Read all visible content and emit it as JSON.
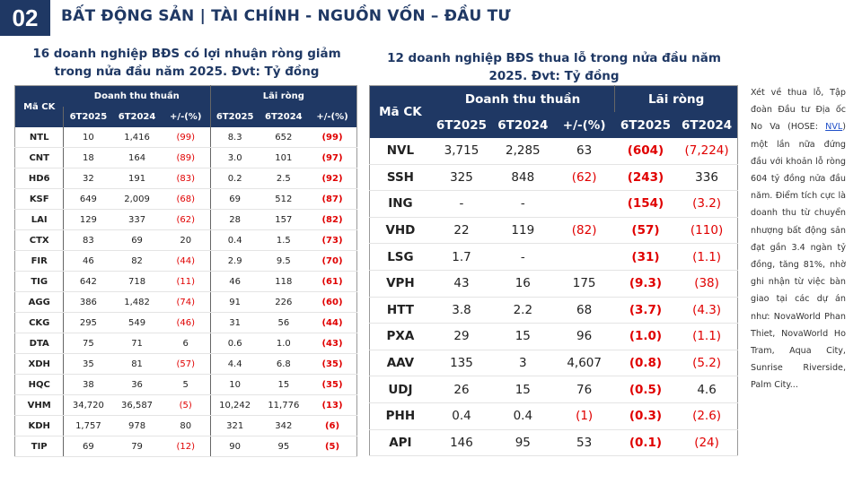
{
  "header": {
    "number": "02",
    "title": "BẤT ĐỘNG SẢN | TÀI CHÍNH - NGUỒN VỐN – ĐẦU TƯ"
  },
  "table1": {
    "title": "16 doanh nghiệp BĐS có lợi nhuận ròng giảm trong nửa đầu năm 2025. Đvt: Tỷ đồng",
    "key_header": "Mã CK",
    "group_headers": [
      "Doanh thu thuần",
      "Lãi ròng"
    ],
    "sub_headers": [
      "6T2025",
      "6T2024",
      "+/-(%)",
      "6T2025",
      "6T2024",
      "+/-(%)"
    ],
    "rows": [
      [
        "NTL",
        "10",
        "1,416",
        "(99)",
        "8.3",
        "652",
        "(99)"
      ],
      [
        "CNT",
        "18",
        "164",
        "(89)",
        "3.0",
        "101",
        "(97)"
      ],
      [
        "HD6",
        "32",
        "191",
        "(83)",
        "0.2",
        "2.5",
        "(92)"
      ],
      [
        "KSF",
        "649",
        "2,009",
        "(68)",
        "69",
        "512",
        "(87)"
      ],
      [
        "LAI",
        "129",
        "337",
        "(62)",
        "28",
        "157",
        "(82)"
      ],
      [
        "CTX",
        "83",
        "69",
        "20",
        "0.4",
        "1.5",
        "(73)"
      ],
      [
        "FIR",
        "46",
        "82",
        "(44)",
        "2.9",
        "9.5",
        "(70)"
      ],
      [
        "TIG",
        "642",
        "718",
        "(11)",
        "46",
        "118",
        "(61)"
      ],
      [
        "AGG",
        "386",
        "1,482",
        "(74)",
        "91",
        "226",
        "(60)"
      ],
      [
        "CKG",
        "295",
        "549",
        "(46)",
        "31",
        "56",
        "(44)"
      ],
      [
        "DTA",
        "75",
        "71",
        "6",
        "0.6",
        "1.0",
        "(43)"
      ],
      [
        "XDH",
        "35",
        "81",
        "(57)",
        "4.4",
        "6.8",
        "(35)"
      ],
      [
        "HQC",
        "38",
        "36",
        "5",
        "10",
        "15",
        "(35)"
      ],
      [
        "VHM",
        "34,720",
        "36,587",
        "(5)",
        "10,242",
        "11,776",
        "(13)"
      ],
      [
        "KDH",
        "1,757",
        "978",
        "80",
        "321",
        "342",
        "(6)"
      ],
      [
        "TIP",
        "69",
        "79",
        "(12)",
        "90",
        "95",
        "(5)"
      ]
    ]
  },
  "table2": {
    "title": "12 doanh nghiệp BĐS thua lỗ trong nửa đầu năm 2025. Đvt: Tỷ đồng",
    "key_header": "Mã CK",
    "group_headers": [
      "Doanh thu thuần",
      "Lãi ròng"
    ],
    "sub_headers": [
      "6T2025",
      "6T2024",
      "+/-(%)",
      "6T2025",
      "6T2024"
    ],
    "rows": [
      [
        "NVL",
        "3,715",
        "2,285",
        "63",
        "(604)",
        "(7,224)"
      ],
      [
        "SSH",
        "325",
        "848",
        "(62)",
        "(243)",
        "336"
      ],
      [
        "ING",
        "-",
        "-",
        null,
        "(154)",
        "(3.2)"
      ],
      [
        "VHD",
        "22",
        "119",
        "(82)",
        "(57)",
        "(110)"
      ],
      [
        "LSG",
        "1.7",
        "-",
        null,
        "(31)",
        "(1.1)"
      ],
      [
        "VPH",
        "43",
        "16",
        "175",
        "(9.3)",
        "(38)"
      ],
      [
        "HTT",
        "3.8",
        "2.2",
        "68",
        "(3.7)",
        "(4.3)"
      ],
      [
        "PXA",
        "29",
        "15",
        "96",
        "(1.0)",
        "(1.1)"
      ],
      [
        "AAV",
        "135",
        "3",
        "4,607",
        "(0.8)",
        "(5.2)"
      ],
      [
        "UDJ",
        "26",
        "15",
        "76",
        "(0.5)",
        "4.6"
      ],
      [
        "PHH",
        "0.4",
        "0.4",
        "(1)",
        "(0.3)",
        "(2.6)"
      ],
      [
        "API",
        "146",
        "95",
        "53",
        "(0.1)",
        "(24)"
      ]
    ]
  },
  "sidebar": {
    "before_link": "Xét về thua lỗ, Tập đoàn Đầu tư Địa ốc No Va (HOSE: ",
    "link": "NVL",
    "after_link": ") một lần nữa đứng đầu với khoản lỗ ròng 604 tỷ đồng nửa đầu năm. Điểm tích cực là doanh thu từ chuyển nhượng bất động sản đạt gần 3.4 ngàn tỷ đồng, tăng 81%, nhờ ghi nhận từ việc bàn giao tại các dự án như: NovaWorld Phan Thiet, NovaWorld Ho Tram, Aqua City, Sunrise Riverside, Palm City..."
  }
}
